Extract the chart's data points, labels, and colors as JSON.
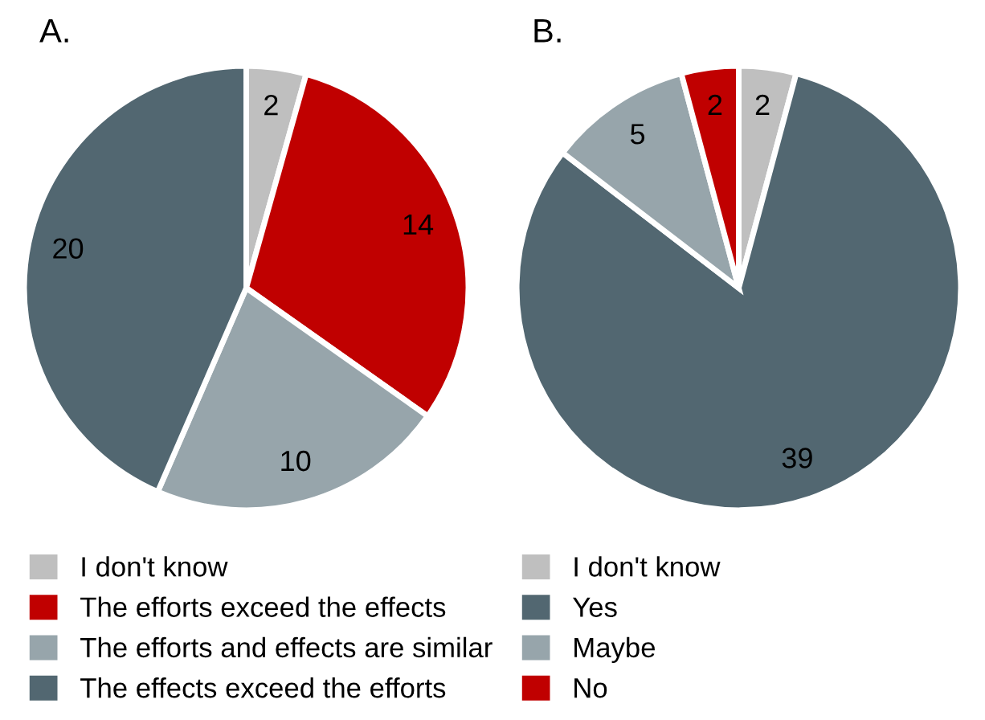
{
  "chart_data": [
    {
      "type": "pie",
      "title": "A.",
      "categories": [
        "I don't know",
        "The efforts exceed the effects",
        "The efforts and effects are similar",
        "The effects exceed the efforts"
      ],
      "values": [
        2,
        14,
        10,
        20
      ],
      "colors": [
        "#bfbfbf",
        "#c00000",
        "#97a5ab",
        "#526771"
      ],
      "data_labels": true,
      "legend": "bottom"
    },
    {
      "type": "pie",
      "title": "B.",
      "categories": [
        "I don't know",
        "Yes",
        "Maybe",
        "No"
      ],
      "values": [
        2,
        39,
        5,
        2
      ],
      "colors": [
        "#bfbfbf",
        "#526771",
        "#97a5ab",
        "#c00000"
      ],
      "data_labels": true,
      "legend": "bottom"
    }
  ]
}
